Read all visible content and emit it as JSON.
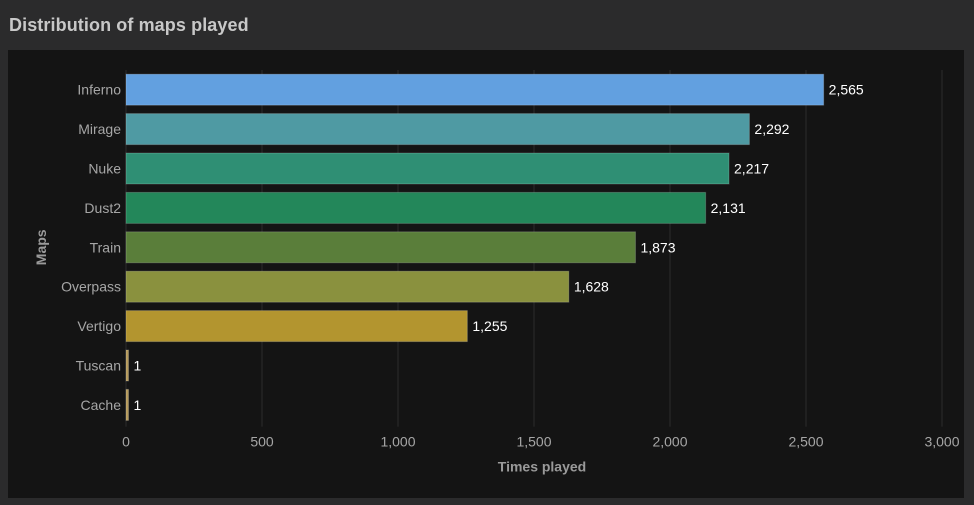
{
  "panel": {
    "title": "Distribution of maps played"
  },
  "chart_data": {
    "type": "bar",
    "orientation": "horizontal",
    "title": "Distribution of maps played",
    "xlabel": "Times played",
    "ylabel": "Maps",
    "xlim": [
      0,
      3000
    ],
    "xticks": [
      0,
      500,
      1000,
      1500,
      2000,
      2500,
      3000
    ],
    "xtick_labels": [
      "0",
      "500",
      "1,000",
      "1,500",
      "2,000",
      "2,500",
      "3,000"
    ],
    "grid": true,
    "categories": [
      "Inferno",
      "Mirage",
      "Nuke",
      "Dust2",
      "Train",
      "Overpass",
      "Vertigo",
      "Tuscan",
      "Cache"
    ],
    "values": [
      2565,
      2292,
      2217,
      2131,
      1873,
      1628,
      1255,
      1,
      1
    ],
    "value_labels": [
      "2,565",
      "2,292",
      "2,217",
      "2,131",
      "1,873",
      "1,628",
      "1,255",
      "1",
      "1"
    ],
    "colors": [
      "#62a0e0",
      "#4f9aa3",
      "#2f8f74",
      "#23875a",
      "#5a7e3a",
      "#8a913e",
      "#b3952f",
      "#b69a5a",
      "#b69a5a"
    ]
  },
  "colors": {
    "background": "#141414",
    "panel": "#2b2b2c",
    "grid": "#2c2c2c"
  }
}
